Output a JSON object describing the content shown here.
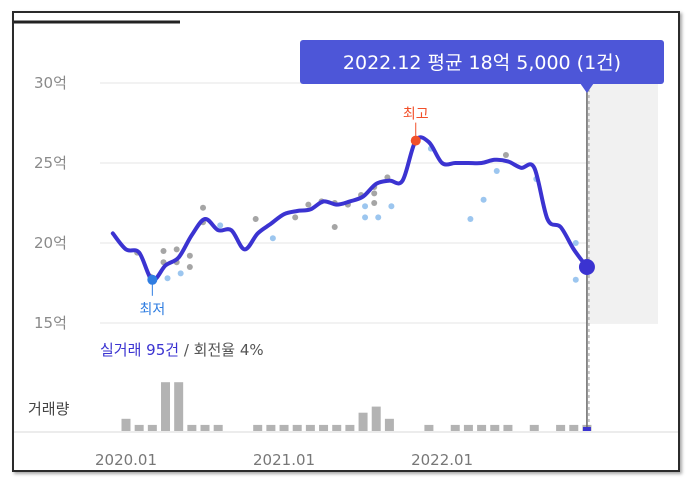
{
  "tooltip": {
    "text": "2022.12 평균 18억 5,000 (1건)"
  },
  "markers": {
    "high_label": "최고",
    "low_label": "최저"
  },
  "summary": {
    "label": "실거래 95건",
    "suffix": " / 회전율 4%"
  },
  "volume_label": "거래량",
  "colors": {
    "line": "#3b33d1",
    "high": "#f2502a",
    "low": "#2f7de1",
    "dots_dark": "#a5a5a5",
    "dots_light": "#9cc6ef",
    "bars": "#b3b3b3",
    "highlight_band": "#f1f1f1",
    "tooltip_bg": "#4d56d8"
  },
  "chart_data": {
    "type": "line",
    "ylim": [
      15,
      30
    ],
    "y_ticks": [
      {
        "value": 30,
        "label": "30억"
      },
      {
        "value": 25,
        "label": "25억"
      },
      {
        "value": 20,
        "label": "20억"
      },
      {
        "value": 15,
        "label": "15억"
      }
    ],
    "x_ticks": [
      {
        "value": "2020-01",
        "label": "2020.01"
      },
      {
        "value": "2021-01",
        "label": "2021.01"
      },
      {
        "value": "2022-01",
        "label": "2022.01"
      }
    ],
    "x_range": [
      "2019-12",
      "2023-04"
    ],
    "highlight_from": "2022-12",
    "grid": true,
    "series": [
      {
        "type": "line",
        "points": [
          {
            "x": "2019-12",
            "y": 20.6
          },
          {
            "x": "2020-01",
            "y": 19.6
          },
          {
            "x": "2020-02",
            "y": 19.4
          },
          {
            "x": "2020-03",
            "y": 17.7
          },
          {
            "x": "2020-04",
            "y": 18.6
          },
          {
            "x": "2020-05",
            "y": 19.1
          },
          {
            "x": "2020-06",
            "y": 20.5
          },
          {
            "x": "2020-07",
            "y": 21.5
          },
          {
            "x": "2020-08",
            "y": 20.8
          },
          {
            "x": "2020-09",
            "y": 20.8
          },
          {
            "x": "2020-10",
            "y": 19.6
          },
          {
            "x": "2020-11",
            "y": 20.6
          },
          {
            "x": "2020-12",
            "y": 21.2
          },
          {
            "x": "2021-01",
            "y": 21.8
          },
          {
            "x": "2021-02",
            "y": 22.0
          },
          {
            "x": "2021-03",
            "y": 22.1
          },
          {
            "x": "2021-04",
            "y": 22.6
          },
          {
            "x": "2021-05",
            "y": 22.4
          },
          {
            "x": "2021-06",
            "y": 22.6
          },
          {
            "x": "2021-07",
            "y": 22.9
          },
          {
            "x": "2021-08",
            "y": 23.7
          },
          {
            "x": "2021-09",
            "y": 23.9
          },
          {
            "x": "2021-10",
            "y": 23.9
          },
          {
            "x": "2021-11",
            "y": 26.4
          },
          {
            "x": "2021-12",
            "y": 26.3
          },
          {
            "x": "2022-01",
            "y": 25.0
          },
          {
            "x": "2022-02",
            "y": 25.0
          },
          {
            "x": "2022-03",
            "y": 25.0
          },
          {
            "x": "2022-04",
            "y": 25.0
          },
          {
            "x": "2022-05",
            "y": 25.2
          },
          {
            "x": "2022-06",
            "y": 25.1
          },
          {
            "x": "2022-07",
            "y": 24.7
          },
          {
            "x": "2022-08",
            "y": 24.7
          },
          {
            "x": "2022-09",
            "y": 21.5
          },
          {
            "x": "2022-10",
            "y": 21.0
          },
          {
            "x": "2022-11",
            "y": 19.6
          },
          {
            "x": "2022-12",
            "y": 18.5
          }
        ]
      },
      {
        "type": "scatter",
        "points": [
          {
            "x": "2020-02",
            "y": 19.4,
            "tone": "dark"
          },
          {
            "x": "2020-03",
            "y": 17.9,
            "tone": "dark"
          },
          {
            "x": "2020-04",
            "y": 18.8,
            "tone": "dark"
          },
          {
            "x": "2020-04",
            "y": 19.5,
            "tone": "dark"
          },
          {
            "x": "2020-04",
            "y": 17.8,
            "tone": "light"
          },
          {
            "x": "2020-05",
            "y": 19.6,
            "tone": "dark"
          },
          {
            "x": "2020-05",
            "y": 18.8,
            "tone": "dark"
          },
          {
            "x": "2020-05",
            "y": 18.1,
            "tone": "light"
          },
          {
            "x": "2020-06",
            "y": 19.2,
            "tone": "dark"
          },
          {
            "x": "2020-06",
            "y": 18.5,
            "tone": "dark"
          },
          {
            "x": "2020-07",
            "y": 21.3,
            "tone": "dark"
          },
          {
            "x": "2020-07",
            "y": 22.2,
            "tone": "dark"
          },
          {
            "x": "2020-08",
            "y": 21.1,
            "tone": "light"
          },
          {
            "x": "2020-11",
            "y": 21.5,
            "tone": "dark"
          },
          {
            "x": "2020-12",
            "y": 20.3,
            "tone": "light"
          },
          {
            "x": "2021-02",
            "y": 21.6,
            "tone": "dark"
          },
          {
            "x": "2021-03",
            "y": 22.4,
            "tone": "dark"
          },
          {
            "x": "2021-04",
            "y": 22.6,
            "tone": "dark"
          },
          {
            "x": "2021-05",
            "y": 21.0,
            "tone": "dark"
          },
          {
            "x": "2021-05",
            "y": 22.5,
            "tone": "dark"
          },
          {
            "x": "2021-06",
            "y": 22.4,
            "tone": "dark"
          },
          {
            "x": "2021-07",
            "y": 21.6,
            "tone": "light"
          },
          {
            "x": "2021-07",
            "y": 22.3,
            "tone": "light"
          },
          {
            "x": "2021-07",
            "y": 23.0,
            "tone": "dark"
          },
          {
            "x": "2021-08",
            "y": 21.6,
            "tone": "light"
          },
          {
            "x": "2021-08",
            "y": 22.5,
            "tone": "dark"
          },
          {
            "x": "2021-08",
            "y": 23.1,
            "tone": "dark"
          },
          {
            "x": "2021-08",
            "y": 23.5,
            "tone": "dark"
          },
          {
            "x": "2021-09",
            "y": 22.3,
            "tone": "light"
          },
          {
            "x": "2021-09",
            "y": 24.1,
            "tone": "dark"
          },
          {
            "x": "2021-12",
            "y": 25.9,
            "tone": "light"
          },
          {
            "x": "2022-03",
            "y": 21.5,
            "tone": "light"
          },
          {
            "x": "2022-04",
            "y": 22.7,
            "tone": "light"
          },
          {
            "x": "2022-05",
            "y": 24.5,
            "tone": "light"
          },
          {
            "x": "2022-06",
            "y": 25.5,
            "tone": "dark"
          },
          {
            "x": "2022-08",
            "y": 24.0,
            "tone": "light"
          },
          {
            "x": "2022-11",
            "y": 20.0,
            "tone": "light"
          },
          {
            "x": "2022-11",
            "y": 17.7,
            "tone": "light"
          }
        ]
      },
      {
        "type": "bar",
        "values": [
          {
            "x": "2020-01",
            "v": 2
          },
          {
            "x": "2020-02",
            "v": 1
          },
          {
            "x": "2020-03",
            "v": 1
          },
          {
            "x": "2020-04",
            "v": 8
          },
          {
            "x": "2020-05",
            "v": 8
          },
          {
            "x": "2020-06",
            "v": 1
          },
          {
            "x": "2020-07",
            "v": 1
          },
          {
            "x": "2020-08",
            "v": 1
          },
          {
            "x": "2020-11",
            "v": 1
          },
          {
            "x": "2020-12",
            "v": 1
          },
          {
            "x": "2021-01",
            "v": 1
          },
          {
            "x": "2021-02",
            "v": 1
          },
          {
            "x": "2021-03",
            "v": 1
          },
          {
            "x": "2021-04",
            "v": 1
          },
          {
            "x": "2021-05",
            "v": 1
          },
          {
            "x": "2021-06",
            "v": 1
          },
          {
            "x": "2021-07",
            "v": 3
          },
          {
            "x": "2021-08",
            "v": 4
          },
          {
            "x": "2021-09",
            "v": 2
          },
          {
            "x": "2021-12",
            "v": 1
          },
          {
            "x": "2022-02",
            "v": 1
          },
          {
            "x": "2022-03",
            "v": 1
          },
          {
            "x": "2022-04",
            "v": 1
          },
          {
            "x": "2022-05",
            "v": 1
          },
          {
            "x": "2022-06",
            "v": 1
          },
          {
            "x": "2022-08",
            "v": 1
          },
          {
            "x": "2022-10",
            "v": 1
          },
          {
            "x": "2022-11",
            "v": 1
          },
          {
            "x": "2022-12",
            "v": 1
          }
        ]
      }
    ],
    "annotations": [
      {
        "kind": "max",
        "x": "2021-11",
        "y": 26.4
      },
      {
        "kind": "min",
        "x": "2020-03",
        "y": 17.7
      },
      {
        "kind": "selected",
        "x": "2022-12",
        "y": 18.5
      }
    ]
  }
}
